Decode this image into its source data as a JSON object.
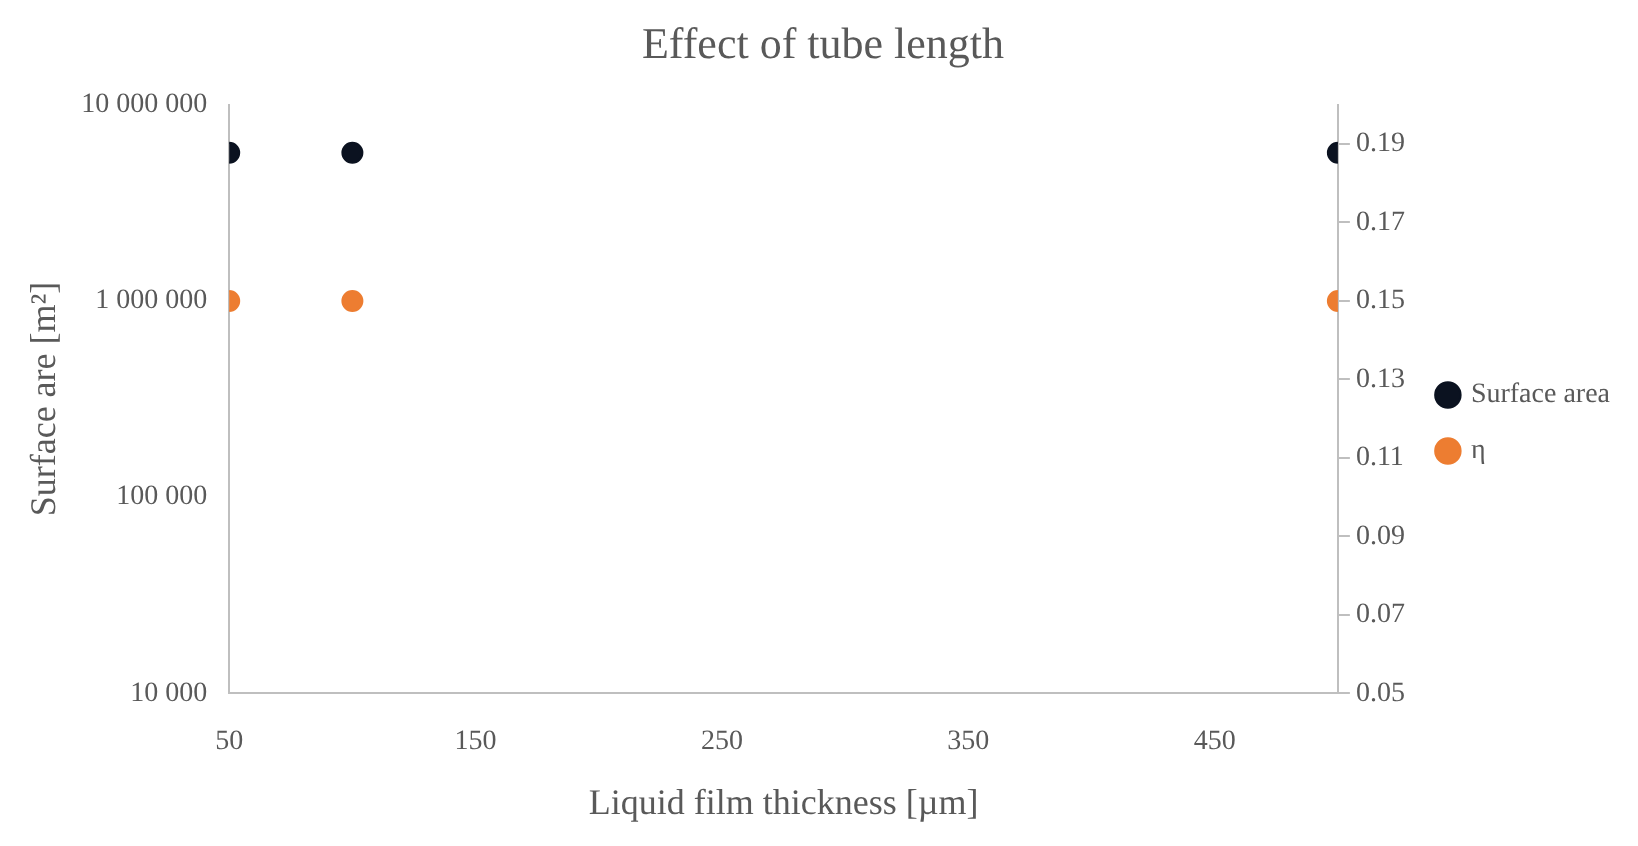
{
  "chart_data": {
    "type": "scatter",
    "title": "Effect of tube length",
    "xlabel": "Liquid film thickness [µm]",
    "ylabel": "Surface are [m²]",
    "x": [
      50,
      100,
      500
    ],
    "series": [
      {
        "name": "Surface area",
        "color": "#0b1220",
        "values": [
          5700000,
          5700000,
          5700000
        ]
      },
      {
        "name": "η",
        "color": "#ed7d31",
        "values": [
          0.15,
          0.15,
          0.15
        ],
        "axis": "y2"
      }
    ],
    "xlim": [
      50,
      500
    ],
    "xticks": [
      50,
      150,
      250,
      350,
      450
    ],
    "log": "y",
    "ylim": [
      10000,
      10000000
    ],
    "yticks": [
      {
        "value": 10000,
        "label": "10 000"
      },
      {
        "value": 100000,
        "label": "100 000"
      },
      {
        "value": 1000000,
        "label": "1 000 000"
      },
      {
        "value": 10000000,
        "label": "10 000 000"
      }
    ],
    "y2lim": [
      0.05,
      0.2
    ],
    "y2ticks": [
      0.05,
      0.07,
      0.09,
      0.11,
      0.13,
      0.15,
      0.17,
      0.19
    ],
    "grid": false,
    "legend": "right",
    "marker": "circle"
  }
}
